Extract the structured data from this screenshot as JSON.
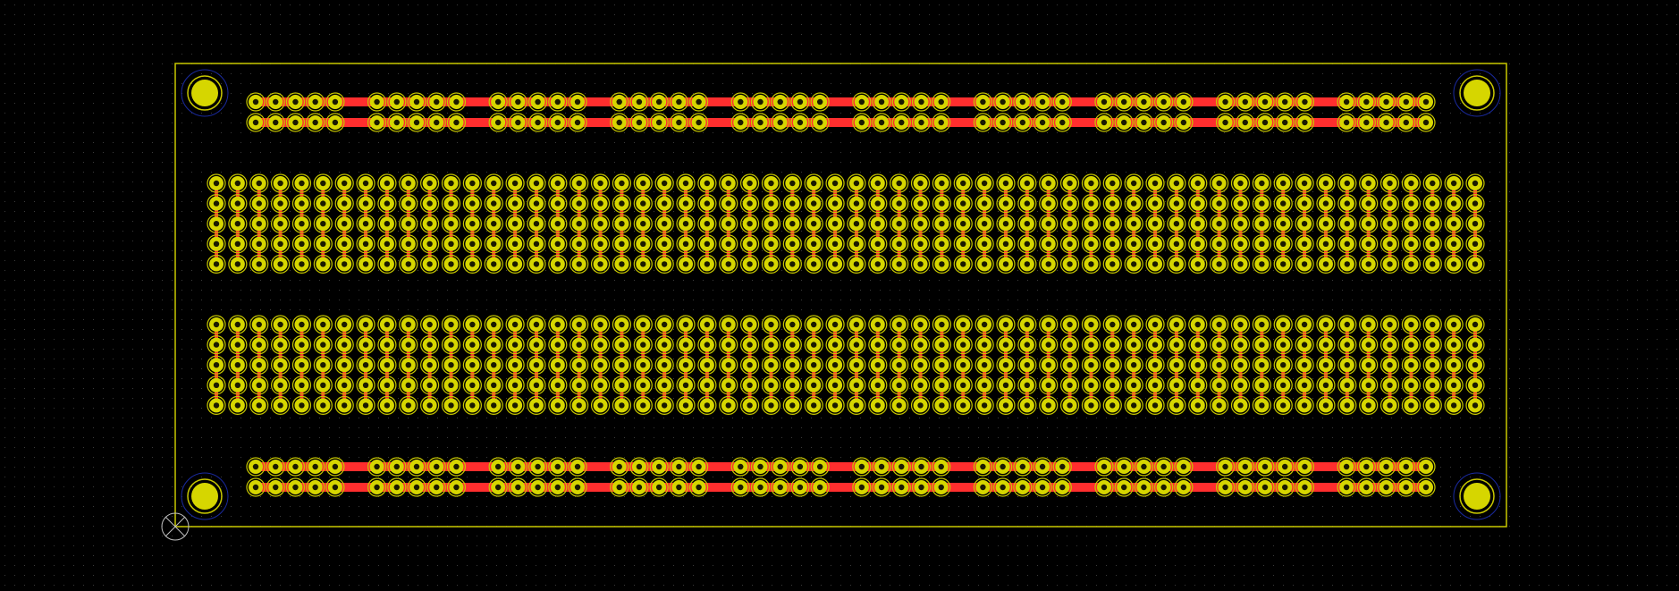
{
  "view": {
    "name": "pcb-editor-canvas",
    "background": "#000000",
    "grid_dot_color": "#3a3a3a"
  },
  "board": {
    "outline_color": "#c8c800",
    "pad_color": "#d6d600",
    "pad_ring_color": "#c8c800",
    "pad_hole_color": "#1a1a00",
    "trace_color": "#ff2e2e",
    "mount_hole_ring_color": "#1a2aa0",
    "origin_marker_color": "#c0c0c0",
    "terminal_strip_groups": 12,
    "terminal_strip_group_size": 5,
    "terminal_strip_rows_per_block": 5,
    "power_rail_groups": 10,
    "power_rail_group_size": 5,
    "power_rail_rows": 2,
    "mounting_holes": 4
  }
}
